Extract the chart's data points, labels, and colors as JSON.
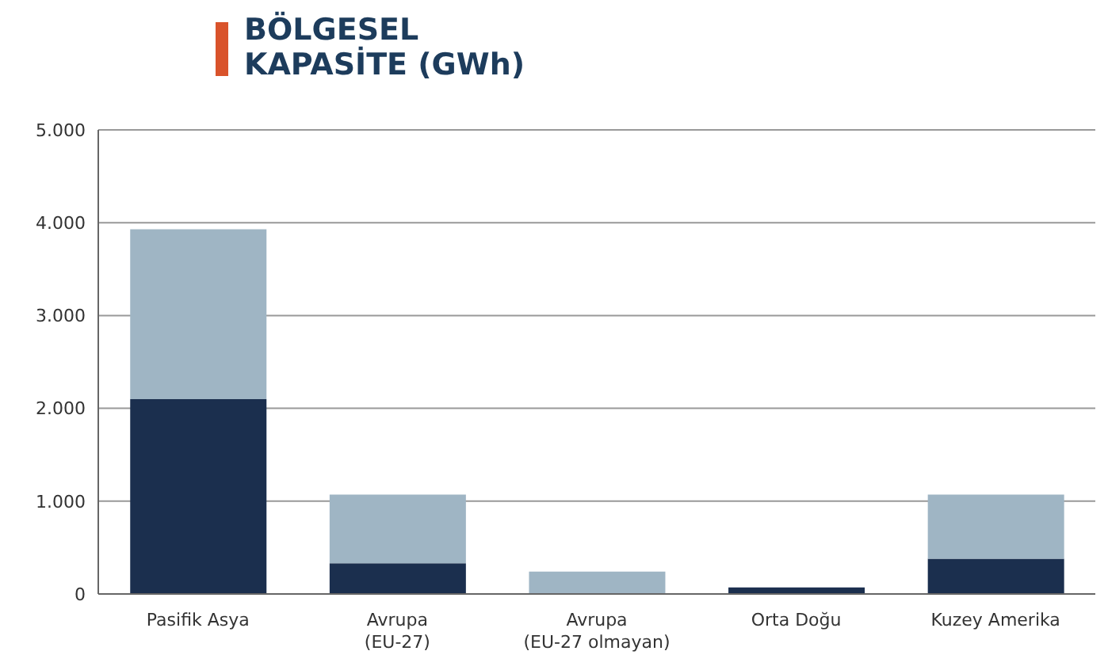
{
  "chart_data": {
    "type": "bar",
    "title": "BÖLGESEL\nKAPASİTE (GWh)",
    "stacked": true,
    "categories": [
      "Pasifik Asya",
      "Avrupa\n(EU-27)",
      "Avrupa\n(EU-27 olmayan)",
      "Orta Doğu",
      "Kuzey Amerika"
    ],
    "series": [
      {
        "color": "#1b2f4e",
        "values": [
          2100,
          330,
          0,
          70,
          380
        ]
      },
      {
        "color": "#9fb5c4",
        "values": [
          1830,
          740,
          240,
          0,
          690
        ]
      }
    ],
    "ylim": [
      0,
      5000
    ],
    "yticks": [
      0,
      {
        "value": 1000,
        "label": "1.000"
      },
      {
        "value": 2000,
        "label": "2.000"
      },
      {
        "value": 3000,
        "label": "3.000"
      },
      {
        "value": 4000,
        "label": "4.000"
      },
      {
        "value": 5000,
        "label": "5.000"
      }
    ],
    "grid": "y"
  }
}
